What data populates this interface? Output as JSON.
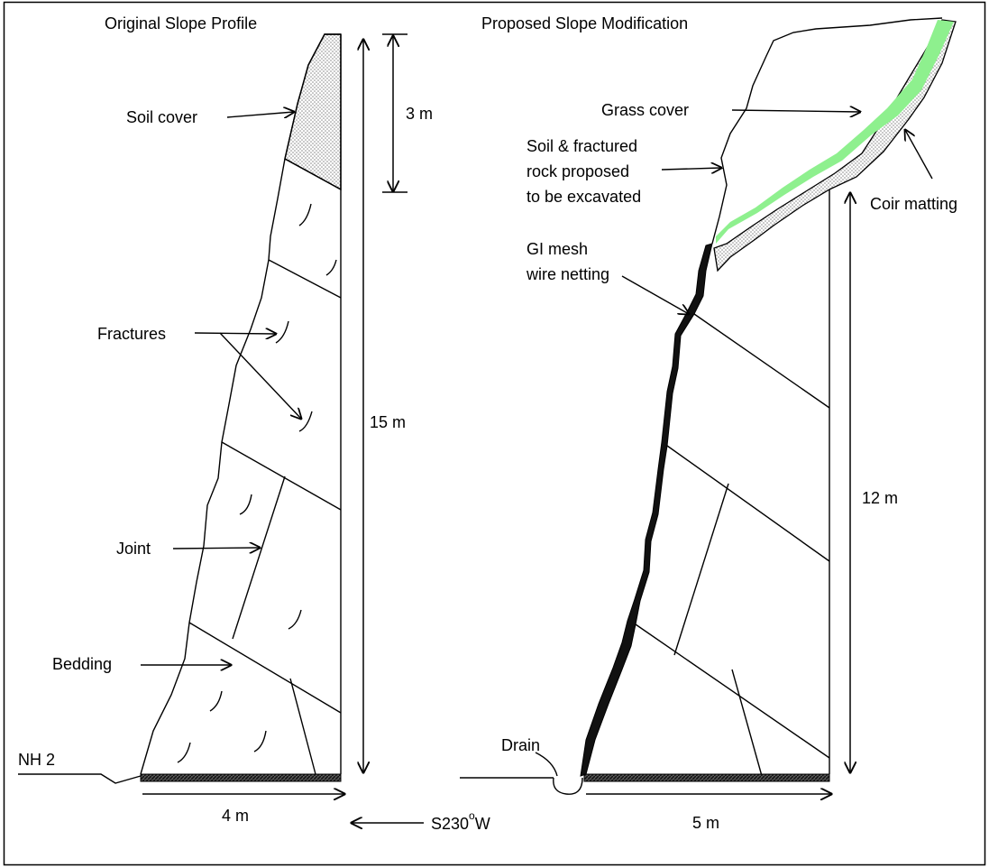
{
  "left_panel": {
    "title": "Original Slope Profile",
    "labels": {
      "soil_cover": "Soil cover",
      "fractures": "Fractures",
      "joint": "Joint",
      "bedding": "Bedding",
      "road": "NH 2"
    },
    "dimensions": {
      "soil_height": "3 m",
      "total_height": "15 m",
      "base_width": "4 m"
    }
  },
  "right_panel": {
    "title": "Proposed Slope Modification",
    "labels": {
      "grass_cover": "Grass cover",
      "excavation_line1": "Soil & fractured",
      "excavation_line2": "rock proposed",
      "excavation_line3": "to be excavated",
      "coir_matting": "Coir matting",
      "gi_mesh_line1": "GI mesh",
      "gi_mesh_line2": "wire netting",
      "drain": "Drain"
    },
    "dimensions": {
      "height": "12 m",
      "base_width": "5 m"
    }
  },
  "direction": {
    "prefix": "S230",
    "degree_mark": "o",
    "suffix": "W"
  },
  "colors": {
    "grass": "#8ef08e",
    "soil_fill": "#d9d9d9",
    "line": "#000000",
    "mesh": "#111111"
  }
}
